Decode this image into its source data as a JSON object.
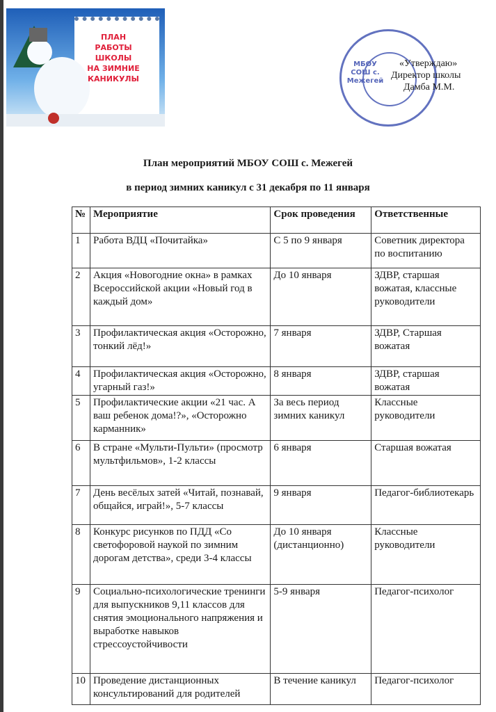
{
  "banner": {
    "text": [
      "План",
      "работы",
      "школы",
      "на зимние",
      "каникулы"
    ]
  },
  "stamp": {
    "center_text": "МБОУ СОШ с. Межегей"
  },
  "approval": {
    "line1": "«Утверждаю»",
    "line2": "Директор школы",
    "line3": "Дамба М.М."
  },
  "title": {
    "line1": "План мероприятий МБОУ СОШ с. Межегей",
    "line2": "в период зимних каникул с 31 декабря по 11 января"
  },
  "table": {
    "headers": [
      "№",
      "Мероприятие",
      "Срок проведения",
      "Ответственные"
    ],
    "rows": [
      {
        "n": "1",
        "event": "Работа ВДЦ «Почитайка»",
        "date": "С 5 по 9 января",
        "resp": "Советник директора по воспитанию"
      },
      {
        "n": "2",
        "event": "Акция «Новогодние окна» в рамках Всероссийской акции «Новый год в каждый дом»",
        "date": "До 10 января",
        "resp": "ЗДВР, старшая вожатая, классные руководители"
      },
      {
        "n": "3",
        "event": "Профилактическая акция «Осторожно, тонкий лёд!»",
        "date": "7 января",
        "resp": "ЗДВР, Старшая вожатая"
      },
      {
        "n": "4",
        "event": "Профилактическая акция «Осторожно, угарный газ!»",
        "date": "8 января",
        "resp": "ЗДВР, старшая вожатая"
      },
      {
        "n": "5",
        "event": "Профилактические акции «21 час. А ваш ребенок дома!?», «Осторожно карманник»",
        "date": "За весь период зимних каникул",
        "resp": "Классные руководители"
      },
      {
        "n": "6",
        "event": "В стране «Мульти-Пульти» (просмотр мультфильмов», 1-2 классы",
        "date": "6 января",
        "resp": "Старшая вожатая"
      },
      {
        "n": "7",
        "event": "День весёлых затей «Читай, познавай, общайся, играй!», 5-7 классы",
        "date": "9 января",
        "resp": "Педагог-библиотекарь"
      },
      {
        "n": "8",
        "event": "Конкурс рисунков по ПДД «Со светофоровой наукой по зимним дорогам детства», среди 3-4 классы",
        "date": "До 10 января (дистанционно)",
        "resp": "Классные руководители"
      },
      {
        "n": "9",
        "event": "Социально-психологические тренинги для выпускников 9,11 классов для снятия эмоционального напряжения и выработке навыков стрессоустойчивости",
        "date": "5-9 января",
        "resp": "Педагог-психолог"
      },
      {
        "n": "10",
        "event": "Проведение дистанционных консультирований для родителей",
        "date": "В течение каникул",
        "resp": "Педагог-психолог"
      }
    ]
  }
}
